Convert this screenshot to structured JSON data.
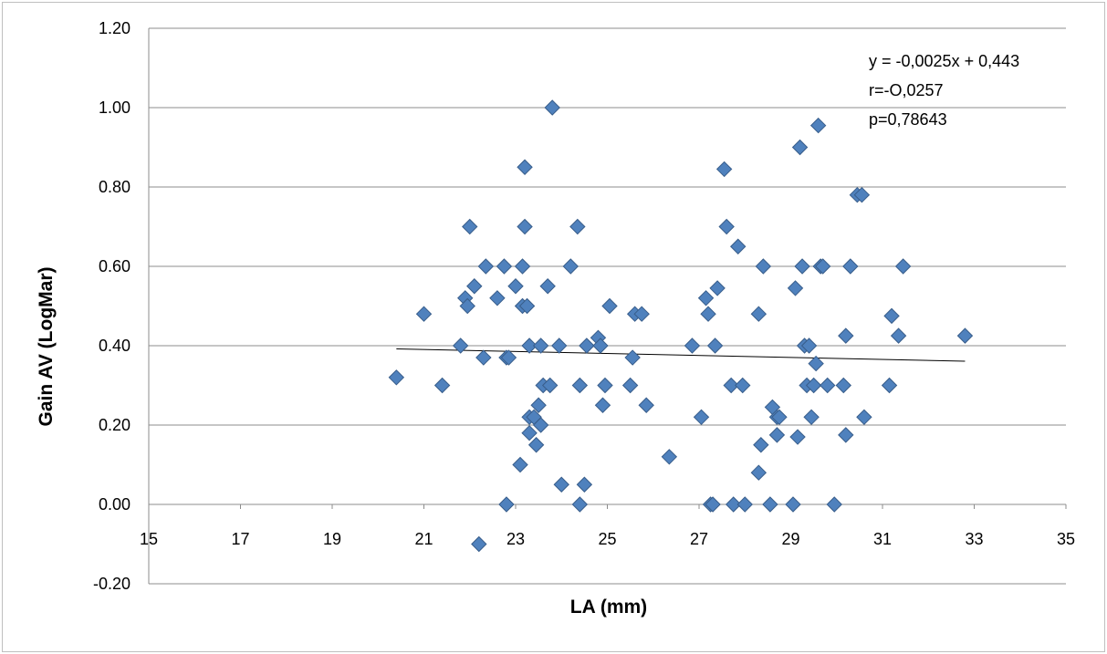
{
  "chart_data": {
    "type": "scatter",
    "title": "",
    "xlabel": "LA (mm)",
    "ylabel": "Gain AV (LogMar)",
    "xlim": [
      15,
      35
    ],
    "ylim": [
      -0.2,
      1.2
    ],
    "x_ticks": [
      "15",
      "17",
      "19",
      "21",
      "23",
      "25",
      "27",
      "29",
      "31",
      "33",
      "35"
    ],
    "y_ticks": [
      "-0.20",
      "0.00",
      "0.20",
      "0.40",
      "0.60",
      "0.80",
      "1.00",
      "1.20"
    ],
    "grid": "horizontal",
    "legend": "none",
    "marker": "diamond",
    "marker_color": "#4f81bd",
    "marker_edge_color": "#385d8a",
    "trendline": {
      "slope": -0.0025,
      "intercept": 0.443,
      "x_range": [
        20.4,
        32.8
      ],
      "color": "#000000"
    },
    "annotations": [
      "y = -0,0025x + 0,443",
      "r=-O,0257",
      "p=0,78643"
    ],
    "points": [
      [
        20.4,
        0.32
      ],
      [
        21.0,
        0.48
      ],
      [
        21.4,
        0.3
      ],
      [
        21.8,
        0.4
      ],
      [
        21.9,
        0.52
      ],
      [
        21.95,
        0.5
      ],
      [
        22.0,
        0.7
      ],
      [
        22.1,
        0.55
      ],
      [
        22.2,
        -0.1
      ],
      [
        22.3,
        0.37
      ],
      [
        22.35,
        0.6
      ],
      [
        22.6,
        0.52
      ],
      [
        22.75,
        0.6
      ],
      [
        22.8,
        0.37
      ],
      [
        22.85,
        0.37
      ],
      [
        22.8,
        0.0
      ],
      [
        23.0,
        0.55
      ],
      [
        23.1,
        0.1
      ],
      [
        23.15,
        0.5
      ],
      [
        23.15,
        0.6
      ],
      [
        23.2,
        0.7
      ],
      [
        23.2,
        0.85
      ],
      [
        23.25,
        0.5
      ],
      [
        23.3,
        0.4
      ],
      [
        23.3,
        0.22
      ],
      [
        23.3,
        0.18
      ],
      [
        23.4,
        0.22
      ],
      [
        23.45,
        0.15
      ],
      [
        23.5,
        0.25
      ],
      [
        23.55,
        0.2
      ],
      [
        23.55,
        0.4
      ],
      [
        23.6,
        0.3
      ],
      [
        23.7,
        0.55
      ],
      [
        23.75,
        0.3
      ],
      [
        23.8,
        1.0
      ],
      [
        23.95,
        0.4
      ],
      [
        24.0,
        0.05
      ],
      [
        24.2,
        0.6
      ],
      [
        24.35,
        0.7
      ],
      [
        24.4,
        0.0
      ],
      [
        24.4,
        0.3
      ],
      [
        24.5,
        0.05
      ],
      [
        24.55,
        0.4
      ],
      [
        24.8,
        0.42
      ],
      [
        24.85,
        0.4
      ],
      [
        24.9,
        0.25
      ],
      [
        24.95,
        0.3
      ],
      [
        25.05,
        0.5
      ],
      [
        25.5,
        0.3
      ],
      [
        25.55,
        0.37
      ],
      [
        25.6,
        0.48
      ],
      [
        25.75,
        0.48
      ],
      [
        25.85,
        0.25
      ],
      [
        26.35,
        0.12
      ],
      [
        26.85,
        0.4
      ],
      [
        27.05,
        0.22
      ],
      [
        27.15,
        0.52
      ],
      [
        27.2,
        0.48
      ],
      [
        27.25,
        0.0
      ],
      [
        27.3,
        0.0
      ],
      [
        27.35,
        0.4
      ],
      [
        27.4,
        0.545
      ],
      [
        27.55,
        0.845
      ],
      [
        27.6,
        0.7
      ],
      [
        27.7,
        0.3
      ],
      [
        27.75,
        0.0
      ],
      [
        27.85,
        0.65
      ],
      [
        27.95,
        0.3
      ],
      [
        28.0,
        0.0
      ],
      [
        28.3,
        0.08
      ],
      [
        28.3,
        0.48
      ],
      [
        28.35,
        0.15
      ],
      [
        28.4,
        0.6
      ],
      [
        28.55,
        0.0
      ],
      [
        28.6,
        0.245
      ],
      [
        28.7,
        0.175
      ],
      [
        28.7,
        0.22
      ],
      [
        28.75,
        0.22
      ],
      [
        29.05,
        0.0
      ],
      [
        29.1,
        0.545
      ],
      [
        29.15,
        0.17
      ],
      [
        29.2,
        0.9
      ],
      [
        29.25,
        0.6
      ],
      [
        29.3,
        0.4
      ],
      [
        29.35,
        0.3
      ],
      [
        29.4,
        0.4
      ],
      [
        29.45,
        0.22
      ],
      [
        29.5,
        0.3
      ],
      [
        29.55,
        0.355
      ],
      [
        29.6,
        0.955
      ],
      [
        29.65,
        0.6
      ],
      [
        29.7,
        0.6
      ],
      [
        29.8,
        0.3
      ],
      [
        29.95,
        0.0
      ],
      [
        30.15,
        0.3
      ],
      [
        30.2,
        0.425
      ],
      [
        30.2,
        0.175
      ],
      [
        30.3,
        0.6
      ],
      [
        30.45,
        0.78
      ],
      [
        30.55,
        0.78
      ],
      [
        30.6,
        0.22
      ],
      [
        31.15,
        0.3
      ],
      [
        31.2,
        0.475
      ],
      [
        31.35,
        0.425
      ],
      [
        31.45,
        0.6
      ],
      [
        32.8,
        0.425
      ]
    ]
  }
}
